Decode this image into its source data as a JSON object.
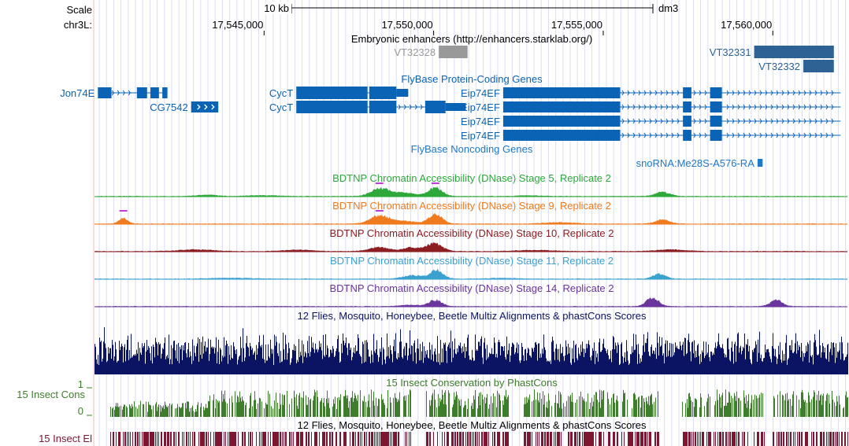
{
  "scale": {
    "label": "Scale",
    "bar_text": "10 kb",
    "assembly": "dm3",
    "chrom_label": "chr3L:",
    "ticks": [
      {
        "pos": 17545000,
        "text": "17,545,000"
      },
      {
        "pos": 17550000,
        "text": "17,550,000"
      },
      {
        "pos": 17555000,
        "text": "17,555,000"
      },
      {
        "pos": 17560000,
        "text": "17,560,000"
      }
    ]
  },
  "enhancers": {
    "title": "Embryonic enhancers (http://enhancers.starklab.org/)",
    "items": [
      {
        "name": "VT32328",
        "start": 17550150,
        "end": 17551000,
        "color": "#999999"
      },
      {
        "name": "VT32331",
        "start": 17559450,
        "end": 17561800,
        "color": "#2e6294"
      },
      {
        "name": "VT32332",
        "start": 17560900,
        "end": 17561800,
        "color": "#2e6294"
      }
    ]
  },
  "genes": {
    "title": "FlyBase Protein-Coding Genes",
    "color": "#0a63b4",
    "items": [
      {
        "name": "Jon74E",
        "strand": "-",
        "start": 17540100,
        "end": 17542150,
        "exons": [
          [
            17540100,
            17540500
          ],
          [
            17541250,
            17541550
          ],
          [
            17541650,
            17541900
          ],
          [
            17542000,
            17542150
          ]
        ]
      },
      {
        "name": "CG7542",
        "strand": "+",
        "start": 17542850,
        "end": 17543650,
        "exons": [
          [
            17542850,
            17543650
          ]
        ]
      },
      {
        "name": "CycT",
        "strand": "-",
        "start": 17545950,
        "end": 17549250,
        "exons": [
          [
            17545950,
            17548050
          ],
          [
            17548100,
            17548900
          ],
          [
            17548900,
            17549250
          ]
        ]
      },
      {
        "name": "CycT",
        "strand": "-",
        "start": 17545950,
        "end": 17550950,
        "exons": [
          [
            17545950,
            17548050
          ],
          [
            17548100,
            17548900
          ],
          [
            17549750,
            17550350
          ],
          [
            17550350,
            17550950
          ]
        ]
      },
      {
        "name": "Eip74EF",
        "strand": "-",
        "start": 17552050,
        "end": 17562000,
        "exons": [
          [
            17552050,
            17554700
          ],
          [
            17554700,
            17555500
          ],
          [
            17557350,
            17557600
          ],
          [
            17558150,
            17558500
          ]
        ]
      },
      {
        "name": "Eip74EF",
        "strand": "-",
        "start": 17552050,
        "end": 17562000,
        "exons": [
          [
            17552050,
            17554700
          ],
          [
            17554700,
            17555500
          ],
          [
            17557350,
            17557600
          ],
          [
            17558150,
            17558500
          ]
        ]
      },
      {
        "name": "Eip74EF",
        "strand": "-",
        "start": 17552050,
        "end": 17562000,
        "exons": [
          [
            17552050,
            17554700
          ],
          [
            17554700,
            17555500
          ],
          [
            17557350,
            17557600
          ],
          [
            17558150,
            17558500
          ]
        ]
      },
      {
        "name": "Eip74EF",
        "strand": "-",
        "start": 17552050,
        "end": 17562000,
        "exons": [
          [
            17552050,
            17554700
          ],
          [
            17554700,
            17555500
          ],
          [
            17557350,
            17557600
          ],
          [
            17558150,
            17558500
          ]
        ]
      }
    ]
  },
  "noncoding": {
    "title": "FlyBase Noncoding Genes",
    "color": "#1f79c9",
    "items": [
      {
        "name": "snoRNA:Me28S-A576-RA",
        "start": 17559550,
        "end": 17559700
      }
    ]
  },
  "dnase": [
    {
      "title": "BDTNP Chromatin Accessibility (DNase) Stage 5, Replicate 2",
      "color": "#2ea83a",
      "peaks": [
        [
          17548400,
          0.55,
          350
        ],
        [
          17550050,
          0.6,
          280
        ],
        [
          17549100,
          0.25,
          500
        ],
        [
          17543300,
          0.1,
          400
        ],
        [
          17545000,
          0.06,
          600
        ],
        [
          17556750,
          0.28,
          300
        ],
        [
          17552800,
          0.05,
          500
        ]
      ]
    },
    {
      "title": "BDTNP Chromatin Accessibility (DNase) Stage 9, Replicate 2",
      "color": "#f07a1e",
      "peaks": [
        [
          17540850,
          0.4,
          180
        ],
        [
          17548400,
          0.55,
          380
        ],
        [
          17550050,
          0.65,
          280
        ],
        [
          17549100,
          0.2,
          450
        ],
        [
          17556750,
          0.3,
          280
        ],
        [
          17553700,
          0.1,
          600
        ]
      ]
    },
    {
      "title": "BDTNP Chromatin Accessibility (DNase) Stage 10, Replicate 2",
      "color": "#8c1e22",
      "peaks": [
        [
          17548400,
          0.3,
          400
        ],
        [
          17550000,
          0.55,
          350
        ],
        [
          17549300,
          0.25,
          300
        ],
        [
          17543000,
          0.12,
          700
        ],
        [
          17546000,
          0.1,
          600
        ],
        [
          17553000,
          0.08,
          800
        ],
        [
          17557000,
          0.12,
          600
        ]
      ]
    },
    {
      "title": "BDTNP Chromatin Accessibility (DNase) Stage 11, Replicate 2",
      "color": "#3ba1cf",
      "peaks": [
        [
          17550100,
          0.6,
          260
        ],
        [
          17549400,
          0.25,
          400
        ],
        [
          17556650,
          0.35,
          250
        ],
        [
          17544000,
          0.06,
          800
        ],
        [
          17552000,
          0.05,
          600
        ]
      ]
    },
    {
      "title": "BDTNP Chromatin Accessibility (DNase) Stage 14, Replicate 2",
      "color": "#6a359c",
      "peaks": [
        [
          17550050,
          0.45,
          260
        ],
        [
          17556450,
          0.6,
          250
        ],
        [
          17560100,
          0.45,
          240
        ],
        [
          17549300,
          0.1,
          400
        ]
      ]
    }
  ],
  "multiz": {
    "title": "12 Flies, Mosquito, Honeybee, Beetle Multiz Alignments & phastCons Scores",
    "color": "#0a1463"
  },
  "insect_cons": {
    "title": "15 Insect Conservation by PhastCons",
    "label": "15 Insect Cons",
    "ymax_label": "1",
    "ymin_label": "0",
    "ylim": [
      0,
      1
    ],
    "color": "#3e7d2c"
  },
  "insect_el": {
    "title": "12 Flies, Mosquito, Honeybee, Beetle Multiz Alignments & phastCons Scores",
    "label": "15 Insect El",
    "color": "#7d1630"
  },
  "view": {
    "start": 17540000,
    "end": 17562200
  }
}
